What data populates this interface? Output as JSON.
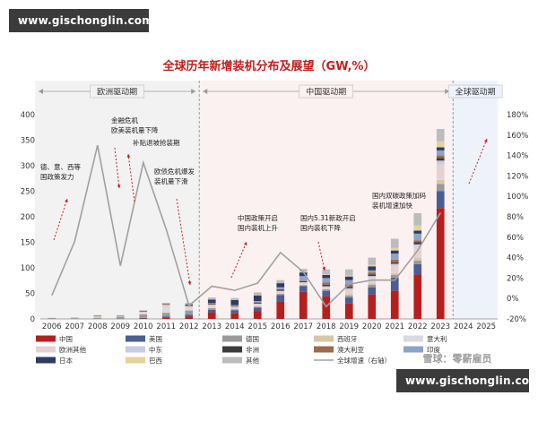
{
  "watermark": {
    "top": "www.gischonglin.com",
    "bottom": "www.gischonglin.com"
  },
  "brand": "雪球：零薪雇员",
  "chart_data": {
    "type": "bar",
    "title": "全球历年新增装机分布及展望（GW,%）",
    "categories": [
      "2006",
      "2007",
      "2008",
      "2009",
      "2010",
      "2011",
      "2012",
      "2013",
      "2014",
      "2015",
      "2016",
      "2017",
      "2018",
      "2019",
      "2020",
      "2021",
      "2022",
      "2023",
      "2024",
      "2025"
    ],
    "ylim": [
      0,
      400
    ],
    "yticks": [
      0,
      50,
      100,
      150,
      200,
      250,
      300,
      350,
      400
    ],
    "y2lim": [
      -20,
      180
    ],
    "y2ticks": [
      "-20%",
      "0%",
      "20%",
      "40%",
      "60%",
      "80%",
      "100%",
      "120%",
      "140%",
      "160%",
      "180%"
    ],
    "y2tick_values": [
      -20,
      0,
      20,
      40,
      60,
      80,
      100,
      120,
      140,
      160,
      180
    ],
    "series": [
      {
        "name": "中国",
        "color": "#b5201e",
        "values": [
          0,
          0,
          0,
          0,
          1,
          3,
          5,
          13,
          11,
          15,
          34,
          53,
          44,
          30,
          48,
          55,
          87,
          217,
          0,
          0
        ]
      },
      {
        "name": "美国",
        "color": "#4a5e94",
        "values": [
          0,
          0,
          0,
          0.5,
          1,
          2,
          3.5,
          5,
          6,
          7,
          13,
          11,
          11,
          12,
          14,
          26,
          20,
          33,
          0,
          0
        ]
      },
      {
        "name": "德国",
        "color": "#9a9a9a",
        "values": [
          1,
          1,
          2,
          4,
          7,
          7,
          8,
          3,
          2,
          2,
          2,
          2,
          3,
          4,
          5,
          5,
          7,
          14,
          0,
          0
        ]
      },
      {
        "name": "西班牙",
        "color": "#d7c7a5",
        "values": [
          0,
          0.5,
          3,
          0,
          0,
          0.5,
          0,
          0,
          0,
          0,
          0,
          0,
          0,
          3,
          3,
          4,
          6,
          8,
          0,
          0
        ]
      },
      {
        "name": "意大利",
        "color": "#d9d9e2",
        "values": [
          0,
          0,
          0.5,
          0.5,
          2,
          9,
          3,
          2,
          0,
          0,
          0,
          0,
          0,
          1,
          1,
          1,
          2,
          5,
          0,
          0
        ]
      },
      {
        "name": "欧洲其他",
        "color": "#e5d1d1",
        "values": [
          0.3,
          0.5,
          0.5,
          1,
          3,
          6,
          5,
          5,
          5,
          6,
          5,
          4,
          4,
          7,
          10,
          13,
          19,
          25,
          0,
          0
        ]
      },
      {
        "name": "中东",
        "color": "#c6cde0",
        "values": [
          0,
          0,
          0,
          0,
          0,
          0,
          0,
          0,
          0,
          0,
          1,
          2,
          2,
          3,
          3,
          4,
          5,
          8,
          0,
          0
        ]
      },
      {
        "name": "非洲",
        "color": "#3c3c3c",
        "values": [
          0,
          0,
          0,
          0,
          0,
          0,
          0,
          1,
          1,
          2,
          2,
          2,
          3,
          3,
          3,
          3,
          4,
          5,
          0,
          0
        ]
      },
      {
        "name": "澳大利亚",
        "color": "#9c6b48",
        "values": [
          0,
          0,
          0,
          0,
          0,
          1,
          1,
          1,
          1,
          1,
          1,
          1,
          4,
          5,
          4,
          5,
          4,
          5,
          0,
          0
        ]
      },
      {
        "name": "印度",
        "color": "#8da3c8",
        "values": [
          0,
          0,
          0,
          0,
          0,
          0,
          1,
          1,
          1,
          2,
          4,
          9,
          9,
          8,
          4,
          12,
          13,
          10,
          0,
          0
        ]
      },
      {
        "name": "日本",
        "color": "#2e3b63",
        "values": [
          0.3,
          0.2,
          0.2,
          0.5,
          1,
          1,
          2,
          7,
          10,
          11,
          8,
          7,
          6,
          7,
          8,
          6,
          6,
          6,
          0,
          0
        ]
      },
      {
        "name": "巴西",
        "color": "#e4d29a",
        "values": [
          0,
          0,
          0,
          0,
          0,
          0,
          0,
          0,
          0,
          0,
          0,
          1,
          1,
          2,
          3,
          5,
          10,
          12,
          0,
          0
        ]
      },
      {
        "name": "其他",
        "color": "#bcbcbc",
        "values": [
          0.5,
          0.5,
          1,
          1,
          2,
          2,
          3,
          4,
          4,
          6,
          6,
          6,
          10,
          12,
          14,
          18,
          24,
          24,
          0,
          0
        ]
      }
    ],
    "growth_series": {
      "name": "全球增速（右轴）",
      "color": "#a0a0a0",
      "values": [
        3,
        56,
        150,
        32,
        133,
        68,
        -7,
        12,
        8,
        15,
        45,
        26,
        -8,
        14,
        18,
        18,
        47,
        84,
        null,
        null
      ]
    },
    "eras": [
      "欧洲驱动期",
      "中国驱动期",
      "全球驱动期"
    ],
    "annotations": [
      {
        "id": "ann1",
        "lines": [
          "德、意、西等",
          "国政策发力"
        ]
      },
      {
        "id": "ann2",
        "lines": [
          "金融危机",
          "欧美装机量下降"
        ]
      },
      {
        "id": "ann3",
        "lines": [
          "补贴退坡抢装期"
        ]
      },
      {
        "id": "ann4",
        "lines": [
          "欧债危机爆发",
          "装机量下滑"
        ]
      },
      {
        "id": "ann5",
        "lines": [
          "中国政策开启",
          "国内装机上升"
        ]
      },
      {
        "id": "ann6",
        "lines": [
          "国内5.31新政开启",
          "国内装机下降"
        ]
      },
      {
        "id": "ann7",
        "lines": [
          "国内双碳政策加码",
          "装机增速加快"
        ]
      }
    ],
    "legend": [
      [
        "中国",
        "美国",
        "德国",
        "西班牙",
        "意大利"
      ],
      [
        "欧洲其他",
        "中东",
        "非洲",
        "澳大利亚",
        "印度"
      ],
      [
        "日本",
        "巴西",
        "其他",
        "全球增速（右轴）"
      ]
    ]
  }
}
